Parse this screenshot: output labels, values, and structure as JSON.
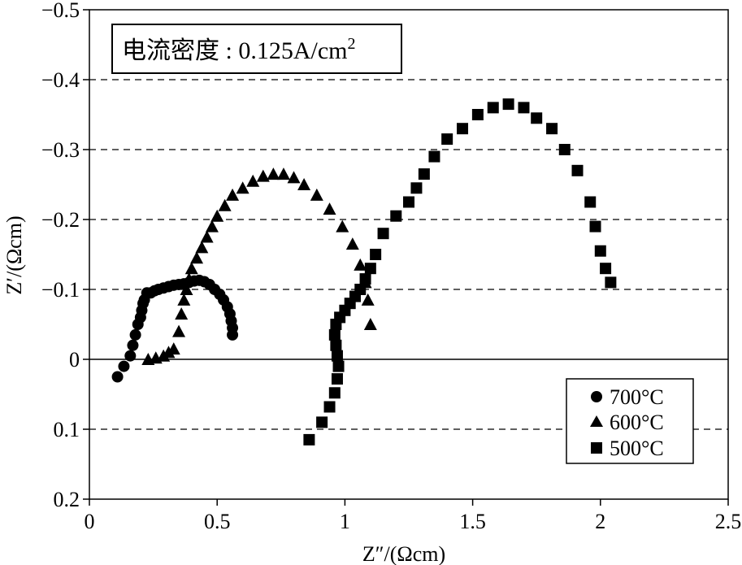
{
  "chart_data": {
    "type": "scatter",
    "title": "",
    "annotation": {
      "label": "电流密度",
      "separator": " : ",
      "value": "0.125A/cm",
      "superscript": "2"
    },
    "xlabel": "Z″/(Ωcm)",
    "ylabel": "Z′/(Ωcm)",
    "xlim": [
      0,
      2.5
    ],
    "ylim": [
      -0.5,
      0.2
    ],
    "y_reversed": true,
    "grid": "horizontal dashed",
    "legend_position": "bottom-right",
    "x_ticks": [
      {
        "value": 0,
        "label": "0"
      },
      {
        "value": 0.5,
        "label": "0.5"
      },
      {
        "value": 1,
        "label": "1"
      },
      {
        "value": 1.5,
        "label": "1.5"
      },
      {
        "value": 2,
        "label": "2"
      },
      {
        "value": 2.5,
        "label": "2.5"
      }
    ],
    "y_ticks": [
      {
        "value": -0.5,
        "label": "−0.5"
      },
      {
        "value": -0.4,
        "label": "−0.4"
      },
      {
        "value": -0.3,
        "label": "−0.3"
      },
      {
        "value": -0.2,
        "label": "−0.2"
      },
      {
        "value": -0.1,
        "label": "−0.1"
      },
      {
        "value": 0,
        "label": "0"
      },
      {
        "value": 0.1,
        "label": "0.1"
      },
      {
        "value": 0.2,
        "label": "0.2"
      }
    ],
    "series": [
      {
        "name": "700°C",
        "marker": "circle",
        "x": [
          0.11,
          0.135,
          0.16,
          0.17,
          0.18,
          0.19,
          0.2,
          0.205,
          0.21,
          0.215,
          0.225,
          0.24,
          0.255,
          0.27,
          0.29,
          0.31,
          0.33,
          0.35,
          0.37,
          0.39,
          0.41,
          0.43,
          0.45,
          0.47,
          0.49,
          0.51,
          0.525,
          0.54,
          0.55,
          0.555,
          0.56,
          0.56
        ],
        "y": [
          0.025,
          0.01,
          -0.005,
          -0.02,
          -0.035,
          -0.05,
          -0.06,
          -0.07,
          -0.08,
          -0.085,
          -0.095,
          -0.095,
          -0.098,
          -0.1,
          -0.102,
          -0.104,
          -0.106,
          -0.107,
          -0.108,
          -0.11,
          -0.112,
          -0.113,
          -0.111,
          -0.107,
          -0.1,
          -0.093,
          -0.085,
          -0.075,
          -0.065,
          -0.055,
          -0.045,
          -0.035
        ]
      },
      {
        "name": "600°C",
        "marker": "triangle",
        "x": [
          0.23,
          0.26,
          0.29,
          0.31,
          0.33,
          0.35,
          0.36,
          0.37,
          0.38,
          0.39,
          0.4,
          0.42,
          0.44,
          0.46,
          0.48,
          0.5,
          0.53,
          0.56,
          0.6,
          0.64,
          0.68,
          0.72,
          0.76,
          0.8,
          0.84,
          0.89,
          0.94,
          0.99,
          1.03,
          1.06,
          1.08,
          1.09,
          1.1
        ],
        "y": [
          0,
          -0.002,
          -0.005,
          -0.01,
          -0.015,
          -0.04,
          -0.065,
          -0.085,
          -0.1,
          -0.115,
          -0.13,
          -0.145,
          -0.16,
          -0.175,
          -0.19,
          -0.205,
          -0.22,
          -0.235,
          -0.245,
          -0.255,
          -0.262,
          -0.265,
          -0.265,
          -0.26,
          -0.25,
          -0.235,
          -0.215,
          -0.19,
          -0.165,
          -0.135,
          -0.11,
          -0.085,
          -0.05
        ]
      },
      {
        "name": "500°C",
        "marker": "square",
        "x": [
          0.86,
          0.91,
          0.94,
          0.96,
          0.97,
          0.975,
          0.97,
          0.965,
          0.96,
          0.965,
          0.98,
          1.0,
          1.02,
          1.04,
          1.06,
          1.08,
          1.1,
          1.12,
          1.15,
          1.2,
          1.25,
          1.28,
          1.31,
          1.35,
          1.4,
          1.46,
          1.52,
          1.58,
          1.64,
          1.7,
          1.75,
          1.81,
          1.86,
          1.91,
          1.96,
          1.98,
          2.0,
          2.02,
          2.04
        ],
        "y": [
          0.115,
          0.09,
          0.068,
          0.048,
          0.028,
          0.01,
          -0.005,
          -0.02,
          -0.035,
          -0.05,
          -0.06,
          -0.07,
          -0.08,
          -0.09,
          -0.1,
          -0.115,
          -0.13,
          -0.15,
          -0.18,
          -0.205,
          -0.225,
          -0.245,
          -0.265,
          -0.29,
          -0.315,
          -0.33,
          -0.35,
          -0.36,
          -0.365,
          -0.36,
          -0.345,
          -0.33,
          -0.3,
          -0.27,
          -0.225,
          -0.19,
          -0.155,
          -0.13,
          -0.11
        ]
      }
    ]
  }
}
